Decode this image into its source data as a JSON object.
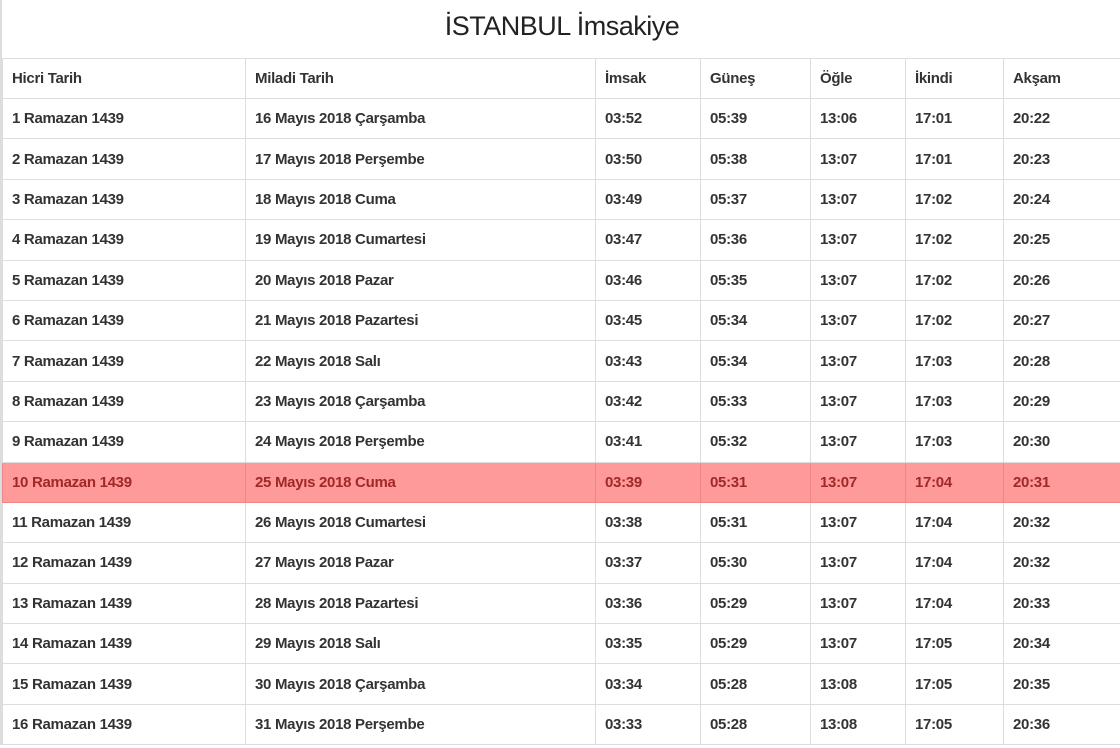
{
  "title": "İSTANBUL İmsakiye",
  "headers": [
    "Hicri Tarih",
    "Miladi Tarih",
    "İmsak",
    "Güneş",
    "Öğle",
    "İkindi",
    "Akşam"
  ],
  "highlight_color": "#ff9a9a",
  "highlighted_row": 9,
  "rows": [
    [
      "1 Ramazan 1439",
      "16 Mayıs 2018 Çarşamba",
      "03:52",
      "05:39",
      "13:06",
      "17:01",
      "20:22"
    ],
    [
      "2 Ramazan 1439",
      "17 Mayıs 2018 Perşembe",
      "03:50",
      "05:38",
      "13:07",
      "17:01",
      "20:23"
    ],
    [
      "3 Ramazan 1439",
      "18 Mayıs 2018 Cuma",
      "03:49",
      "05:37",
      "13:07",
      "17:02",
      "20:24"
    ],
    [
      "4 Ramazan 1439",
      "19 Mayıs 2018 Cumartesi",
      "03:47",
      "05:36",
      "13:07",
      "17:02",
      "20:25"
    ],
    [
      "5 Ramazan 1439",
      "20 Mayıs 2018 Pazar",
      "03:46",
      "05:35",
      "13:07",
      "17:02",
      "20:26"
    ],
    [
      "6 Ramazan 1439",
      "21 Mayıs 2018 Pazartesi",
      "03:45",
      "05:34",
      "13:07",
      "17:02",
      "20:27"
    ],
    [
      "7 Ramazan 1439",
      "22 Mayıs 2018 Salı",
      "03:43",
      "05:34",
      "13:07",
      "17:03",
      "20:28"
    ],
    [
      "8 Ramazan 1439",
      "23 Mayıs 2018 Çarşamba",
      "03:42",
      "05:33",
      "13:07",
      "17:03",
      "20:29"
    ],
    [
      "9 Ramazan 1439",
      "24 Mayıs 2018 Perşembe",
      "03:41",
      "05:32",
      "13:07",
      "17:03",
      "20:30"
    ],
    [
      "10 Ramazan 1439",
      "25 Mayıs 2018 Cuma",
      "03:39",
      "05:31",
      "13:07",
      "17:04",
      "20:31"
    ],
    [
      "11 Ramazan 1439",
      "26 Mayıs 2018 Cumartesi",
      "03:38",
      "05:31",
      "13:07",
      "17:04",
      "20:32"
    ],
    [
      "12 Ramazan 1439",
      "27 Mayıs 2018 Pazar",
      "03:37",
      "05:30",
      "13:07",
      "17:04",
      "20:32"
    ],
    [
      "13 Ramazan 1439",
      "28 Mayıs 2018 Pazartesi",
      "03:36",
      "05:29",
      "13:07",
      "17:04",
      "20:33"
    ],
    [
      "14 Ramazan 1439",
      "29 Mayıs 2018 Salı",
      "03:35",
      "05:29",
      "13:07",
      "17:05",
      "20:34"
    ],
    [
      "15 Ramazan 1439",
      "30 Mayıs 2018 Çarşamba",
      "03:34",
      "05:28",
      "13:08",
      "17:05",
      "20:35"
    ],
    [
      "16 Ramazan 1439",
      "31 Mayıs 2018 Perşembe",
      "03:33",
      "05:28",
      "13:08",
      "17:05",
      "20:36"
    ]
  ]
}
